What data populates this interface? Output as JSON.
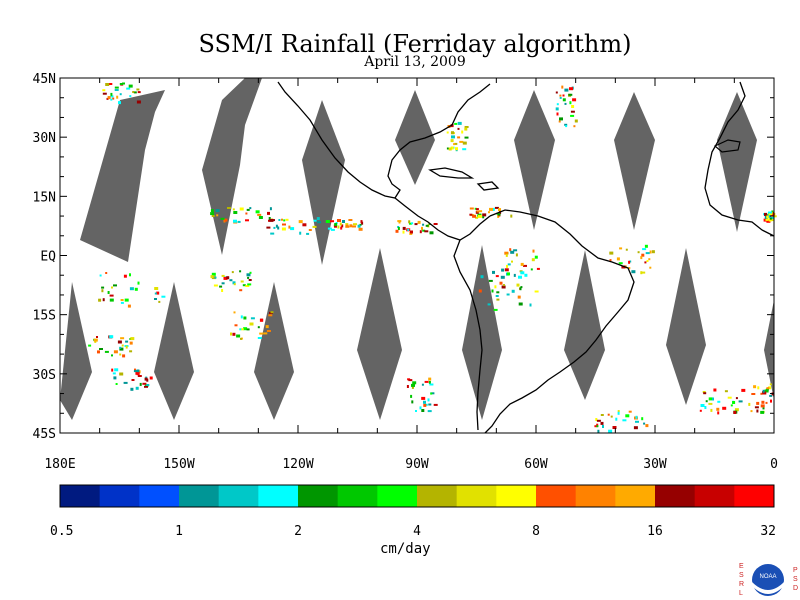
{
  "title": "SSM/I Rainfall (Ferriday algorithm)",
  "date": "April 13, 2009",
  "map": {
    "lon_range": [
      -180,
      0
    ],
    "lat_range": [
      -45,
      45
    ],
    "lat_ticks": [
      "45N",
      "30N",
      "15N",
      "EQ",
      "15S",
      "30S",
      "45S"
    ],
    "lat_tick_values": [
      45,
      30,
      15,
      0,
      -15,
      -30,
      -45
    ],
    "lon_ticks": [
      "180E",
      "150W",
      "120W",
      "90W",
      "60W",
      "30W",
      "0"
    ],
    "lon_tick_values": [
      -180,
      -150,
      -120,
      -90,
      -60,
      -30,
      0
    ],
    "no_data_color": "#646464"
  },
  "colorbar": {
    "unit": "cm/day",
    "tick_labels": [
      "0.5",
      "1",
      "2",
      "4",
      "8",
      "16",
      "32"
    ],
    "tick_values": [
      0.5,
      1,
      2,
      4,
      8,
      16,
      32
    ],
    "colors": [
      "#001a80",
      "#0032c8",
      "#0050ff",
      "#009696",
      "#00c8c8",
      "#00ffff",
      "#009600",
      "#00c800",
      "#00ff00",
      "#b4b400",
      "#e1e100",
      "#ffff00",
      "#ff5000",
      "#ff8200",
      "#ffaa00",
      "#960000",
      "#c80000",
      "#ff0000"
    ]
  },
  "logo": {
    "left_letters": [
      "E",
      "S",
      "R",
      "L"
    ],
    "right_letters": [
      "P",
      "S",
      "D"
    ],
    "badge": "NOAA"
  }
}
